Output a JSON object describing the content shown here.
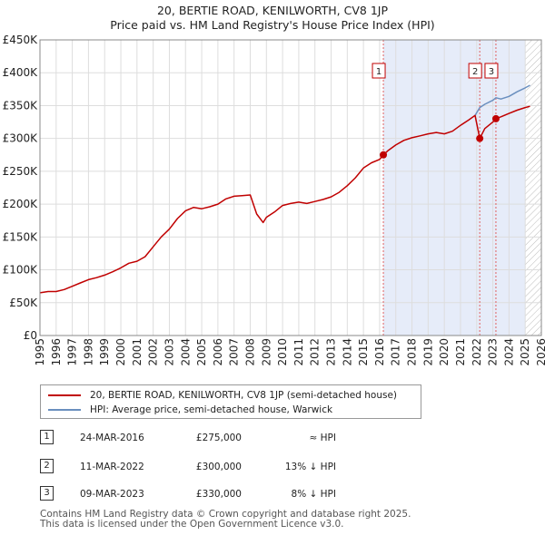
{
  "title_line1": "20, BERTIE ROAD, KENILWORTH, CV8 1JP",
  "title_line2": "Price paid vs. HM Land Registry's House Price Index (HPI)",
  "colors": {
    "property_line": "#c00000",
    "hpi_line": "#6a8fbf",
    "shade": "#e6ecf9",
    "grid": "#dddddd",
    "vline": "#e06060"
  },
  "chart_data": {
    "type": "line",
    "title": "20, BERTIE ROAD, KENILWORTH, CV8 1JP — Price paid vs. HM Land Registry's House Price Index (HPI)",
    "xlabel": "",
    "ylabel": "",
    "xlim": [
      1995.0,
      2026.0
    ],
    "ylim": [
      0,
      450000
    ],
    "grid": true,
    "x_ticks": [
      1995,
      1996,
      1997,
      1998,
      1999,
      2000,
      2001,
      2002,
      2003,
      2004,
      2005,
      2006,
      2007,
      2008,
      2009,
      2010,
      2011,
      2012,
      2013,
      2014,
      2015,
      2016,
      2017,
      2018,
      2019,
      2020,
      2021,
      2022,
      2023,
      2024,
      2025,
      2026
    ],
    "x_tick_labels": [
      "1995",
      "1996",
      "1997",
      "1998",
      "1999",
      "2000",
      "2001",
      "2002",
      "2003",
      "2004",
      "2005",
      "2006",
      "2007",
      "2008",
      "2009",
      "2010",
      "2011",
      "2012",
      "2013",
      "2014",
      "2015",
      "2016",
      "2017",
      "2018",
      "2019",
      "2020",
      "2021",
      "2022",
      "2023",
      "2024",
      "2025",
      "2026"
    ],
    "y_ticks": [
      0,
      50000,
      100000,
      150000,
      200000,
      250000,
      300000,
      350000,
      400000,
      450000
    ],
    "y_tick_labels": [
      "£0",
      "£50K",
      "£100K",
      "£150K",
      "£200K",
      "£250K",
      "£300K",
      "£350K",
      "£400K",
      "£450K"
    ],
    "shaded_region": {
      "from": 2016.23,
      "to": 2025.0
    },
    "hatched_region": {
      "from": 2025.0,
      "to": 2026.0
    },
    "series": [
      {
        "name": "20, BERTIE ROAD, KENILWORTH, CV8 1JP (semi-detached house)",
        "x": [
          1995.0,
          1995.5,
          1996.0,
          1996.5,
          1997.0,
          1997.5,
          1998.0,
          1998.5,
          1999.0,
          1999.5,
          2000.0,
          2000.5,
          2001.0,
          2001.5,
          2002.0,
          2002.5,
          2003.0,
          2003.5,
          2004.0,
          2004.5,
          2005.0,
          2005.5,
          2006.0,
          2006.5,
          2007.0,
          2007.5,
          2008.0,
          2008.4,
          2008.8,
          2009.0,
          2009.5,
          2010.0,
          2010.5,
          2011.0,
          2011.5,
          2012.0,
          2012.5,
          2013.0,
          2013.5,
          2014.0,
          2014.5,
          2015.0,
          2015.5,
          2016.0,
          2016.23,
          2016.5,
          2017.0,
          2017.5,
          2018.0,
          2018.5,
          2019.0,
          2019.5,
          2020.0,
          2020.5,
          2021.0,
          2021.5,
          2021.9,
          2022.19,
          2022.5,
          2023.0,
          2023.19,
          2023.5,
          2024.0,
          2024.5,
          2025.0,
          2025.3
        ],
        "values": [
          65000,
          67000,
          67000,
          70000,
          75000,
          80000,
          85000,
          88000,
          92000,
          97000,
          103000,
          110000,
          113000,
          120000,
          135000,
          150000,
          162000,
          178000,
          190000,
          195000,
          193000,
          196000,
          200000,
          208000,
          212000,
          213000,
          214000,
          185000,
          172000,
          180000,
          188000,
          198000,
          201000,
          203000,
          201000,
          204000,
          207000,
          211000,
          218000,
          228000,
          240000,
          255000,
          263000,
          268000,
          275000,
          281000,
          290000,
          297000,
          301000,
          304000,
          307000,
          309000,
          307000,
          311000,
          320000,
          328000,
          335000,
          300000,
          315000,
          325000,
          330000,
          333000,
          338000,
          343000,
          347000,
          349000
        ]
      },
      {
        "name": "HPI: Average price, semi-detached house, Warwick",
        "x": [
          2021.9,
          2022.19,
          2022.5,
          2023.0,
          2023.19,
          2023.5,
          2024.0,
          2024.5,
          2025.0,
          2025.3
        ],
        "values": [
          335000,
          347000,
          352000,
          358000,
          362000,
          360000,
          364000,
          371000,
          377000,
          381000
        ]
      }
    ],
    "sales": [
      {
        "label": "1",
        "x": 2016.23,
        "price": 275000
      },
      {
        "label": "2",
        "x": 2022.19,
        "price": 300000
      },
      {
        "label": "3",
        "x": 2023.19,
        "price": 330000
      }
    ]
  },
  "legend": {
    "property": "20, BERTIE ROAD, KENILWORTH, CV8 1JP (semi-detached house)",
    "hpi": "HPI: Average price, semi-detached house, Warwick"
  },
  "transactions": [
    {
      "num": "1",
      "date": "24-MAR-2016",
      "price": "£275,000",
      "rel": "≈ HPI"
    },
    {
      "num": "2",
      "date": "11-MAR-2022",
      "price": "£300,000",
      "rel": "13% ↓ HPI"
    },
    {
      "num": "3",
      "date": "09-MAR-2023",
      "price": "£330,000",
      "rel": "8% ↓ HPI"
    }
  ],
  "footer": {
    "line1": "Contains HM Land Registry data © Crown copyright and database right 2025.",
    "line2": "This data is licensed under the Open Government Licence v3.0."
  }
}
